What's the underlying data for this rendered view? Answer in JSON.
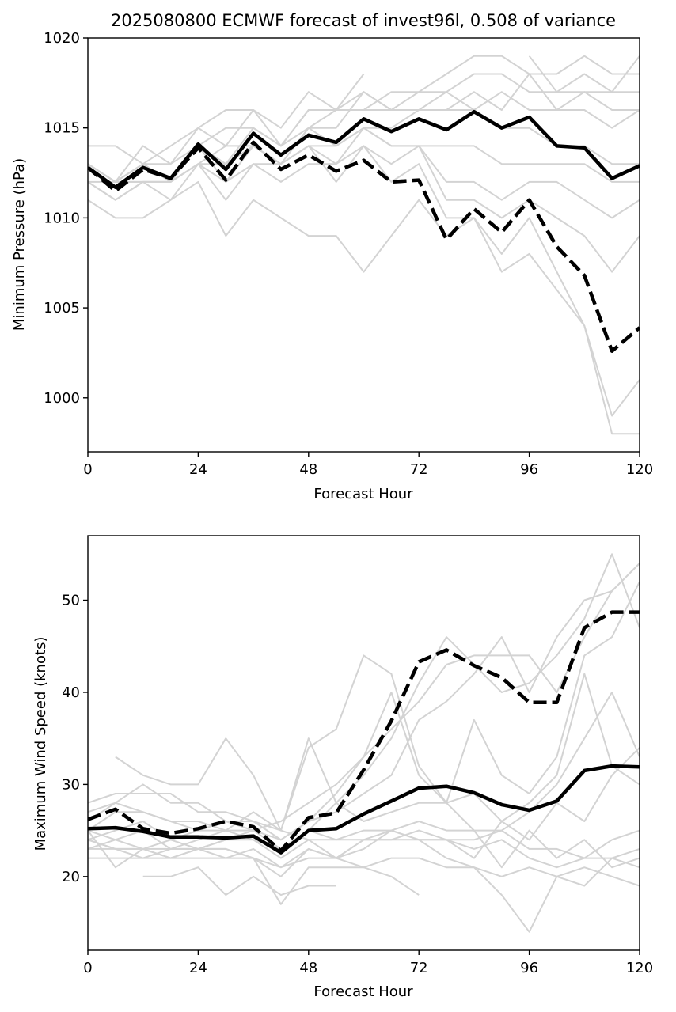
{
  "title": "2025080800 ECMWF forecast of invest96l, 0.508 of variance",
  "colors": {
    "ensemble": "#d3d3d3",
    "mean": "#000000",
    "highlight": "#000000",
    "background": "#ffffff"
  },
  "chart_data": [
    {
      "type": "line",
      "title": "2025080800 ECMWF forecast of invest96l, 0.508 of variance",
      "xlabel": "Forecast Hour",
      "ylabel": "Minimum Pressure (hPa)",
      "xlim": [
        0,
        120
      ],
      "ylim": [
        997,
        1020
      ],
      "xticks": [
        0,
        24,
        48,
        72,
        96,
        120
      ],
      "yticks": [
        1000,
        1005,
        1010,
        1015,
        1020
      ],
      "grid": false,
      "x": [
        0,
        6,
        12,
        18,
        24,
        30,
        36,
        42,
        48,
        54,
        60,
        66,
        72,
        78,
        84,
        90,
        96,
        102,
        108,
        114,
        120
      ],
      "series": [
        {
          "role": "mean",
          "style": "solid",
          "values": [
            1012.8,
            1011.7,
            1012.8,
            1012.2,
            1014.1,
            1012.7,
            1014.7,
            1013.5,
            1014.6,
            1014.2,
            1015.5,
            1014.8,
            1015.5,
            1014.9,
            1015.9,
            1015.0,
            1015.6,
            1014.0,
            1013.9,
            1012.2,
            1012.9
          ]
        },
        {
          "role": "highlight",
          "style": "dashed",
          "values": [
            1012.8,
            1011.5,
            1012.7,
            1012.2,
            1013.9,
            1012.1,
            1014.2,
            1012.7,
            1013.5,
            1012.6,
            1013.2,
            1012.0,
            1012.1,
            1008.8,
            1010.5,
            1009.2,
            1011.0,
            1008.4,
            1006.8,
            1002.6,
            1003.9
          ]
        }
      ],
      "members": [
        [
          1014,
          1014,
          1013,
          1014,
          1015,
          1014,
          1016,
          1014,
          1015,
          1016,
          1017,
          1016,
          1017,
          1018,
          1019,
          1019,
          1018,
          1018,
          1019,
          1018,
          1018
        ],
        [
          1013,
          1012,
          1013,
          1013,
          1014,
          1015,
          1015,
          1014,
          1016,
          1016,
          1016,
          1017,
          1017,
          1017,
          1018,
          1018,
          1017,
          1017,
          1017,
          1017,
          1017
        ],
        [
          1013,
          1012,
          1012,
          1012,
          1013,
          1014,
          1014,
          1013,
          1015,
          1015,
          1017,
          1016,
          1016,
          1016,
          1017,
          1016,
          1018,
          1016,
          1017,
          1016,
          1016
        ],
        [
          1012,
          1011,
          1012,
          1012,
          1014,
          1013,
          1015,
          1014,
          1016,
          1016,
          1016,
          1016,
          1016,
          1017,
          1016,
          1017,
          1016,
          1016,
          1016,
          1015,
          1016
        ],
        [
          1012,
          1011,
          1012,
          1012,
          1013,
          1013,
          1014,
          1013,
          1014,
          1014,
          1015,
          1015,
          1016,
          1016,
          1016,
          1015,
          1015,
          1014,
          1014,
          1013,
          1013
        ],
        [
          1013,
          1012,
          1013,
          1012,
          1014,
          1013,
          1014,
          1013,
          1015,
          1014,
          1015,
          1014,
          1014,
          1014,
          1014,
          1013,
          1013,
          1013,
          1013,
          1012,
          1012
        ],
        [
          1012,
          1012,
          1013,
          1012,
          1014,
          1012,
          1014,
          1013,
          1014,
          1013,
          1015,
          1014,
          1014,
          1012,
          1012,
          1011,
          1012,
          1012,
          1011,
          1010,
          1011
        ],
        [
          1013,
          1012,
          1012,
          1012,
          1013,
          1012,
          1013,
          1012,
          1013,
          1013,
          1014,
          1013,
          1014,
          1011,
          1011,
          1010,
          1011,
          1010,
          1009,
          1007,
          1009
        ],
        [
          1012,
          1011,
          1012,
          1011,
          1013,
          1011,
          1013,
          1013,
          1014,
          1012,
          1014,
          1012,
          1013,
          1010,
          1010,
          1008,
          1010,
          1007,
          1004,
          999,
          1001
        ],
        [
          1011,
          1010,
          1010,
          1011,
          1012,
          1009,
          1011,
          1010,
          1009,
          1009,
          1007,
          1009,
          1011,
          1009,
          1010,
          1007,
          1008,
          1006,
          1004,
          998,
          998
        ],
        [
          1013,
          1012,
          1014,
          1013,
          1015,
          1016,
          1016,
          1015,
          1017,
          1016,
          1018,
          null,
          null,
          null,
          null,
          null,
          null,
          null,
          null,
          null,
          null
        ],
        [
          null,
          null,
          null,
          null,
          null,
          null,
          null,
          null,
          null,
          null,
          null,
          null,
          null,
          null,
          null,
          null,
          1019,
          1017,
          1018,
          1017,
          1019
        ]
      ]
    },
    {
      "type": "line",
      "title": "",
      "xlabel": "Forecast Hour",
      "ylabel": "Maximum Wind Speed (knots)",
      "xlim": [
        0,
        120
      ],
      "ylim": [
        12,
        57
      ],
      "xticks": [
        0,
        24,
        48,
        72,
        96,
        120
      ],
      "yticks": [
        20,
        30,
        40,
        50
      ],
      "grid": false,
      "x": [
        0,
        6,
        12,
        18,
        24,
        30,
        36,
        42,
        48,
        54,
        60,
        66,
        72,
        78,
        84,
        90,
        96,
        102,
        108,
        114,
        120
      ],
      "series": [
        {
          "role": "mean",
          "style": "solid",
          "values": [
            25.2,
            25.3,
            24.9,
            24.3,
            24.3,
            24.2,
            24.4,
            22.6,
            25.0,
            25.2,
            26.8,
            28.2,
            29.6,
            29.8,
            29.1,
            27.8,
            27.2,
            28.2,
            31.5,
            32.0,
            31.9
          ]
        },
        {
          "role": "highlight",
          "style": "dashed",
          "values": [
            26.2,
            27.3,
            25.2,
            24.7,
            25.2,
            26.0,
            25.4,
            22.8,
            26.4,
            26.9,
            31.6,
            36.9,
            43.3,
            44.6,
            42.9,
            41.6,
            38.9,
            38.9,
            47.0,
            48.7,
            48.7
          ]
        }
      ],
      "members": [
        [
          24,
          23,
          22,
          22,
          23,
          24,
          25,
          26,
          28,
          30,
          33,
          36,
          39,
          43,
          44,
          44,
          44,
          40,
          46,
          51,
          54
        ],
        [
          25,
          24,
          25,
          23,
          24,
          25,
          24,
          23,
          25,
          28,
          31,
          35,
          41,
          46,
          43,
          40,
          41,
          44,
          48,
          55,
          47
        ],
        [
          26,
          28,
          27,
          26,
          25,
          26,
          25,
          24,
          26,
          27,
          29,
          31,
          37,
          39,
          42,
          46,
          40,
          46,
          50,
          51,
          54
        ],
        [
          28,
          29,
          29,
          29,
          27,
          27,
          26,
          24,
          26,
          29,
          33,
          40,
          31,
          28,
          37,
          31,
          29,
          33,
          44,
          46,
          52
        ],
        [
          27,
          28,
          30,
          28,
          28,
          26,
          26,
          25,
          34,
          36,
          44,
          42,
          32,
          28,
          25,
          25,
          27,
          30,
          35,
          40,
          33
        ],
        [
          25,
          27,
          27,
          26,
          26,
          25,
          27,
          25,
          35,
          28,
          26,
          27,
          28,
          28,
          29,
          26,
          28,
          31,
          42,
          32,
          30
        ],
        [
          24,
          25,
          26,
          24,
          25,
          25,
          25,
          23,
          25,
          24,
          25,
          25,
          24,
          24,
          22,
          26,
          24,
          28,
          26,
          31,
          34
        ],
        [
          23,
          24,
          23,
          24,
          23,
          24,
          24,
          22,
          24,
          24,
          24,
          24,
          24,
          24,
          23,
          24,
          22,
          21,
          22,
          24,
          25
        ],
        [
          23,
          23,
          23,
          23,
          23,
          23,
          22,
          20,
          23,
          22,
          24,
          24,
          25,
          24,
          24,
          25,
          23,
          23,
          22,
          22,
          23
        ],
        [
          22,
          22,
          22,
          23,
          23,
          23,
          22,
          21,
          22,
          22,
          23,
          25,
          26,
          25,
          25,
          21,
          25,
          22,
          24,
          21,
          22
        ],
        [
          25,
          21,
          23,
          22,
          23,
          22,
          23,
          21,
          23,
          22,
          24,
          25,
          24,
          22,
          21,
          18,
          14,
          20,
          19,
          22,
          21
        ],
        [
          24,
          23,
          23,
          22,
          22,
          22,
          22,
          17,
          21,
          21,
          21,
          22,
          22,
          21,
          21,
          20,
          21,
          20,
          21,
          20,
          19
        ],
        [
          null,
          33,
          31,
          30,
          30,
          35,
          31,
          25,
          24,
          22,
          21,
          20,
          18,
          null,
          null,
          null,
          null,
          null,
          null,
          null,
          null
        ],
        [
          null,
          null,
          20,
          20,
          21,
          18,
          20,
          18,
          19,
          19,
          null,
          null,
          null,
          null,
          null,
          null,
          null,
          null,
          null,
          null,
          null
        ]
      ]
    }
  ]
}
